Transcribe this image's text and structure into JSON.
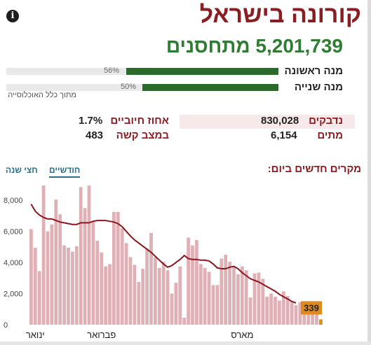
{
  "header": {
    "title": "קורונה בישראל",
    "info_icon": "info-icon",
    "info_glyph": "i"
  },
  "vaccination": {
    "total": "5,201,739 מתחסנים",
    "doses": [
      {
        "label": "מנה ראשונה",
        "percent_text": "56%",
        "percent": 56
      },
      {
        "label": "מנה שנייה",
        "percent_text": "50%",
        "percent": 50
      }
    ],
    "note": "מתוך כלל האוכלוסייה"
  },
  "stats": {
    "confirmed_label": "נדבקים",
    "confirmed_value": "830,028",
    "deaths_label": "מתים",
    "deaths_value": "6,154",
    "positive_label": "אחוז חיוביים",
    "positive_value": "1.7%",
    "severe_label": "במצב קשה",
    "severe_value": "483"
  },
  "chart_section": {
    "title": "מקרים חדשים ביום:",
    "tabs": [
      {
        "label": "חודשיים",
        "active": true
      },
      {
        "label": "חצי שנה",
        "active": false
      }
    ]
  },
  "colors": {
    "title": "#8b1e22",
    "vacc_green": "#2e7d32",
    "bar": "#dfb1b6",
    "line": "#8b1620",
    "highlight": "#e08a1e"
  },
  "chart_data": {
    "type": "bar",
    "ylim": [
      0,
      9000
    ],
    "yticks": [
      "0",
      "2,000",
      "4,000",
      "6,000",
      "8,000"
    ],
    "ytick_values": [
      0,
      2000,
      4000,
      6000,
      8000
    ],
    "month_labels": [
      "ינואר",
      "פברואר",
      "מארס"
    ],
    "month_label_index": [
      1,
      17,
      51
    ],
    "values": [
      6150,
      4950,
      3450,
      8950,
      6000,
      6450,
      8050,
      7100,
      5100,
      4950,
      4700,
      5050,
      8850,
      7500,
      8950,
      6650,
      5400,
      4650,
      3750,
      3900,
      7250,
      7250,
      6200,
      5250,
      4350,
      3850,
      2750,
      3600,
      4900,
      5900,
      4350,
      3650,
      4050,
      3500,
      2000,
      2700,
      3750,
      450,
      5600,
      5100,
      5450,
      3900,
      3650,
      3400,
      2550,
      2550,
      4250,
      4500,
      4050,
      3700,
      3250,
      3750,
      3500,
      1750,
      3300,
      3350,
      2950,
      1800,
      2000,
      1800,
      1550,
      2150,
      1850,
      1500,
      1250,
      1450,
      900,
      900,
      1100,
      1400,
      339
    ],
    "avg": [
      7750,
      7300,
      7050,
      6900,
      6800,
      6800,
      6700,
      6600,
      6550,
      6500,
      6450,
      6450,
      6550,
      6550,
      6550,
      6650,
      6700,
      6700,
      6700,
      6650,
      6600,
      6500,
      6300,
      6000,
      5700,
      5450,
      5250,
      5050,
      4850,
      4650,
      4400,
      4150,
      3900,
      3700,
      3800,
      4000,
      4200,
      4450,
      4250,
      4200,
      4200,
      4150,
      4150,
      4100,
      3900,
      3650,
      3600,
      3600,
      3700,
      3750,
      3600,
      3350,
      3150,
      2950,
      2850,
      2750,
      2600,
      2450,
      2300,
      2150,
      1950,
      1800,
      1650,
      1500,
      1400,
      null,
      null,
      null,
      null,
      null,
      null
    ],
    "last_value_label": "339"
  }
}
